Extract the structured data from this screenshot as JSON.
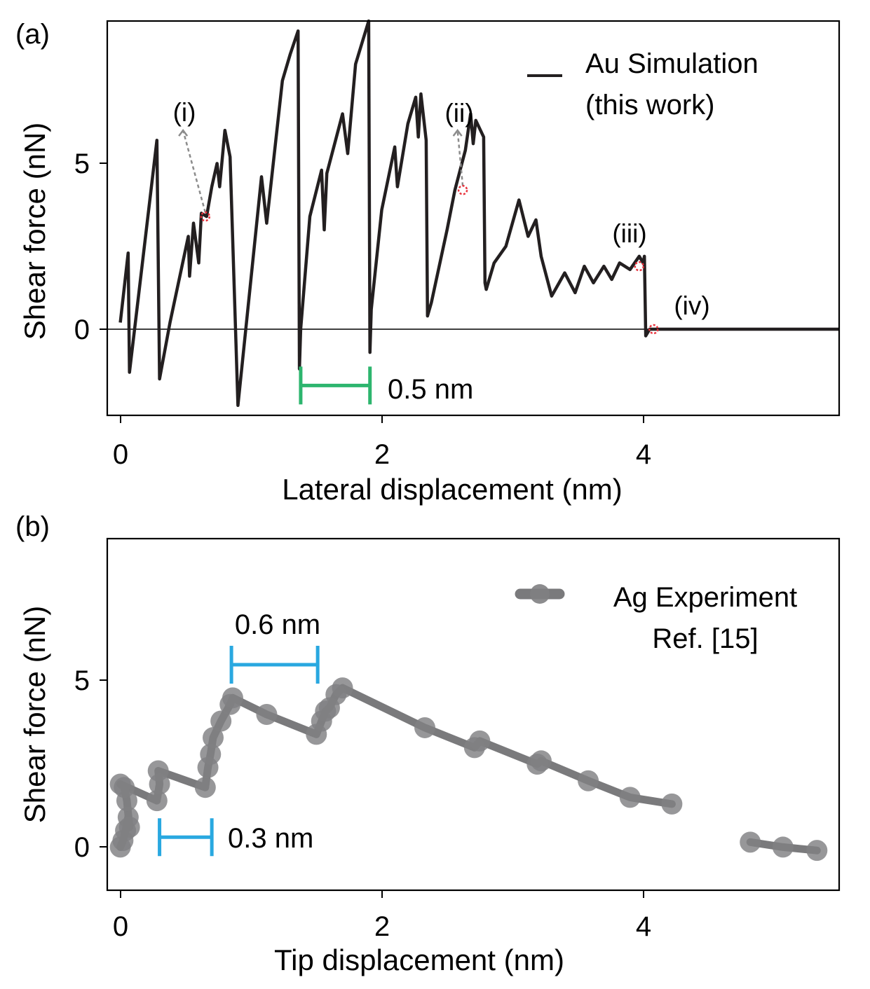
{
  "panels": [
    {
      "panel_label": "(a)",
      "title": "",
      "xlabel": "Lateral displacement (nm)",
      "ylabel": "Shear force (nN)",
      "xticks": [
        "0",
        "2",
        "4"
      ],
      "yticks": [
        "0",
        "5"
      ],
      "legend": {
        "line1": "Au Simulation",
        "line2": "(this work)"
      },
      "scale_bar_label": "0.5 nm",
      "annotations": [
        "(i)",
        "(ii)",
        "(iii)",
        "(iv)"
      ]
    },
    {
      "panel_label": "(b)",
      "title": "",
      "xlabel": "Tip displacement (nm)",
      "ylabel": "Shear force (nN)",
      "xticks": [
        "0",
        "2",
        "4"
      ],
      "yticks": [
        "0",
        "5"
      ],
      "legend": {
        "line1": "Ag Experiment",
        "line2": "Ref. [15]"
      },
      "scale_bar_labels": [
        "0.6 nm",
        "0.3 nm"
      ]
    }
  ],
  "chart_data": [
    {
      "type": "line",
      "title": "",
      "xlabel": "Lateral displacement (nm)",
      "ylabel": "Shear force (nN)",
      "xlim": [
        -0.1,
        5.5
      ],
      "ylim": [
        -2.6,
        9.3
      ],
      "grid": false,
      "legend_position": "top-right",
      "reference_line_y": 0,
      "colors": {
        "line": "#231f20",
        "scale_bar": "#2db56e",
        "marker": "#e8323c",
        "arrow": "#8c8c8c"
      },
      "series": [
        {
          "name": "Au Simulation (this work)",
          "x": [
            0,
            0.06,
            0.07,
            0.1,
            0.28,
            0.3,
            0.38,
            0.52,
            0.53,
            0.56,
            0.6,
            0.62,
            0.66,
            0.7,
            0.74,
            0.76,
            0.8,
            0.84,
            0.9,
            1.08,
            1.12,
            1.24,
            1.27,
            1.3,
            1.36,
            1.37,
            1.38,
            1.45,
            1.54,
            1.56,
            1.58,
            1.7,
            1.74,
            1.8,
            1.9,
            1.91,
            1.92,
            2.0,
            2.1,
            2.12,
            2.2,
            2.26,
            2.28,
            2.3,
            2.34,
            2.35,
            2.38,
            2.5,
            2.56,
            2.64,
            2.68,
            2.7,
            2.72,
            2.78,
            2.79,
            2.8,
            2.86,
            2.95,
            3.05,
            3.12,
            3.18,
            3.22,
            3.3,
            3.4,
            3.48,
            3.55,
            3.62,
            3.7,
            3.76,
            3.82,
            3.9,
            3.97,
            4.0,
            4.01,
            4.02,
            4.05,
            4.5,
            5.0,
            5.5
          ],
          "y": [
            0.2,
            2.3,
            -1.3,
            -0.3,
            5.7,
            -1.5,
            0.2,
            2.8,
            1.6,
            3.2,
            2.0,
            3.5,
            3.4,
            4.3,
            5.0,
            4.3,
            6.0,
            5.2,
            -2.3,
            4.6,
            3.2,
            7.5,
            7.9,
            8.3,
            9.0,
            -1.2,
            0.0,
            3.4,
            4.8,
            3.0,
            4.7,
            6.5,
            5.3,
            8.0,
            9.3,
            -0.7,
            0.6,
            3.6,
            5.5,
            4.3,
            6.2,
            7.0,
            5.8,
            7.1,
            5.7,
            0.4,
            0.8,
            3.0,
            4.2,
            5.4,
            6.5,
            5.6,
            6.3,
            5.8,
            1.4,
            1.2,
            2.0,
            2.5,
            3.9,
            2.8,
            3.3,
            2.2,
            1.0,
            1.7,
            1.1,
            1.9,
            1.4,
            1.9,
            1.5,
            2.0,
            1.8,
            2.2,
            2.0,
            2.2,
            -0.2,
            0.0,
            0.0,
            0.0,
            0.0
          ]
        }
      ],
      "markers": [
        {
          "label": "(i)",
          "x": 0.65,
          "y": 3.4,
          "arrow_to": [
            0.48,
            6.0
          ]
        },
        {
          "label": "(ii)",
          "x": 2.62,
          "y": 4.2,
          "arrow_to": [
            2.58,
            6.0
          ]
        },
        {
          "label": "(iii)",
          "x": 3.97,
          "y": 1.9
        },
        {
          "label": "(iv)",
          "x": 4.08,
          "y": 0.0
        }
      ],
      "scale_bars": [
        {
          "label": "0.5 nm",
          "x_start": 1.38,
          "x_end": 1.91,
          "y": -1.7
        }
      ]
    },
    {
      "type": "line",
      "title": "",
      "xlabel": "Tip displacement (nm)",
      "ylabel": "Shear force (nN)",
      "xlim": [
        -0.1,
        5.5
      ],
      "ylim": [
        -1.3,
        9.3
      ],
      "grid": false,
      "legend_position": "top-right",
      "colors": {
        "line": "#7a7a7c",
        "marker": "#808082",
        "scale_bar": "#29a8e0"
      },
      "series": [
        {
          "name": "Ag Experiment Ref. [15]",
          "segments": [
            {
              "x": [
                0.0,
                0.02,
                0.04,
                0.06,
                0.07,
                0.05,
                0.03,
                0.0,
                0.28,
                0.3,
                0.29,
                0.65,
                0.67,
                0.69,
                0.71,
                0.77,
                0.84,
                0.86,
                1.12,
                1.5,
                1.54,
                1.57,
                1.6,
                1.65,
                1.7,
                2.33,
                2.71,
                2.75,
                3.19,
                3.22,
                3.58,
                3.9,
                4.22
              ],
              "y": [
                0.0,
                0.2,
                0.5,
                0.9,
                0.6,
                1.4,
                1.8,
                1.9,
                1.4,
                1.9,
                2.3,
                1.8,
                2.4,
                2.8,
                3.3,
                3.8,
                4.3,
                4.5,
                4.0,
                3.4,
                3.8,
                4.1,
                4.2,
                4.6,
                4.8,
                3.6,
                3.0,
                3.2,
                2.5,
                2.6,
                2.0,
                1.5,
                1.3
              ]
            },
            {
              "x": [
                4.82,
                5.07,
                5.33
              ],
              "y": [
                0.15,
                0.0,
                -0.1
              ]
            }
          ]
        }
      ],
      "scale_bars": [
        {
          "label": "0.6 nm",
          "x_start": 0.85,
          "x_end": 1.51,
          "y": 5.5
        },
        {
          "label": "0.3 nm",
          "x_start": 0.3,
          "x_end": 0.7,
          "y": 0.3
        }
      ]
    }
  ]
}
